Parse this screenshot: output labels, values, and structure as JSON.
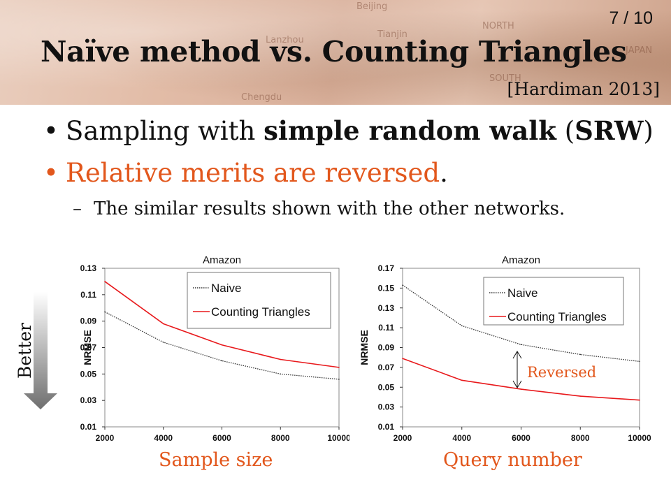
{
  "header": {
    "page_number": "7 / 10",
    "title": "Naïve method vs. Counting Triangles",
    "citation": "[Hardiman 2013]"
  },
  "bullets": {
    "b1_pre": "Sampling with ",
    "b1_bold": "simple random walk",
    "b1_mid": " (",
    "b1_bold2": "SRW",
    "b1_post": ")",
    "b2_text": "Relative merits are reversed",
    "b2_period": ".",
    "sub_dash": "–",
    "sub_text": "The similar results shown with the other networks."
  },
  "side_label": {
    "text": "Better"
  },
  "captions": {
    "left": "Sample size",
    "right": "Query number"
  },
  "annotation": {
    "text": "Reversed"
  },
  "colors": {
    "accent": "#e2571c",
    "red_series": "#e8191c",
    "naive_series": "#333333"
  },
  "chart_data": [
    {
      "type": "line",
      "title": "Amazon",
      "xlabel": "",
      "ylabel": "NRMSE",
      "x": [
        2000,
        4000,
        6000,
        8000,
        10000
      ],
      "xlim": [
        2000,
        10000
      ],
      "ylim": [
        0.01,
        0.13
      ],
      "xticks": [
        "2000",
        "4000",
        "6000",
        "8000",
        "10000"
      ],
      "yticks": [
        "0.01",
        "0.03",
        "0.05",
        "0.07",
        "0.09",
        "0.11",
        "0.13"
      ],
      "series": [
        {
          "name": "Naive",
          "values": [
            0.097,
            0.074,
            0.06,
            0.05,
            0.046
          ],
          "color": "#333333",
          "dash": "dotted"
        },
        {
          "name": "Counting Triangles",
          "values": [
            0.12,
            0.088,
            0.072,
            0.061,
            0.055
          ],
          "color": "#e8191c",
          "dash": "solid"
        }
      ],
      "legend": "top-right",
      "grid": false
    },
    {
      "type": "line",
      "title": "Amazon",
      "xlabel": "",
      "ylabel": "NRMSE",
      "x": [
        2000,
        4000,
        6000,
        8000,
        10000
      ],
      "xlim": [
        2000,
        10000
      ],
      "ylim": [
        0.01,
        0.17
      ],
      "xticks": [
        "2000",
        "4000",
        "6000",
        "8000",
        "10000"
      ],
      "yticks": [
        "0.01",
        "0.03",
        "0.05",
        "0.07",
        "0.09",
        "0.11",
        "0.13",
        "0.15",
        "0.17"
      ],
      "series": [
        {
          "name": "Naive",
          "values": [
            0.153,
            0.112,
            0.093,
            0.083,
            0.076
          ],
          "color": "#333333",
          "dash": "dotted"
        },
        {
          "name": "Counting Triangles",
          "values": [
            0.079,
            0.057,
            0.048,
            0.041,
            0.037
          ],
          "color": "#e8191c",
          "dash": "solid"
        }
      ],
      "legend": "top-right",
      "grid": false
    }
  ]
}
